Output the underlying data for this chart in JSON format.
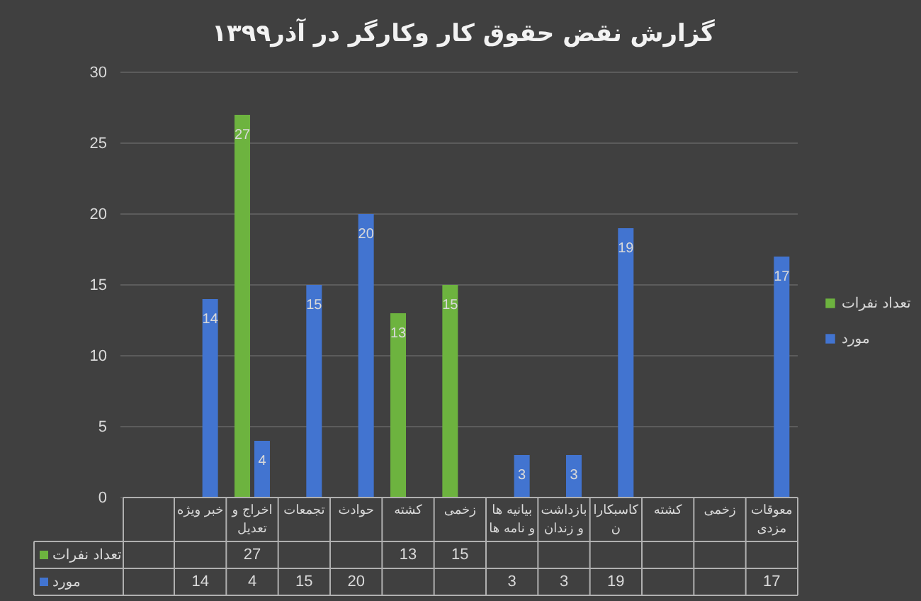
{
  "chart_data": {
    "type": "bar",
    "title": "گزارش نقض حقوق کار وکارگر در آذر۱۳۹۹",
    "categories": [
      "خبر ویژه",
      "اخراج و تعدیل",
      "تجمعات",
      "حوادث",
      "کشته",
      "زخمی",
      "بیانیه ها و نامه ها",
      "بازداشت و زندان",
      "کاسبکاران",
      "کشته",
      "زخمی",
      "معوقات مزدی"
    ],
    "series": [
      {
        "name": "تعداد نفرات",
        "color": "#6db33f",
        "values": [
          null,
          27,
          null,
          null,
          13,
          15,
          null,
          null,
          null,
          null,
          null,
          null
        ],
        "value_labels": [
          null,
          "27",
          null,
          null,
          "13",
          "15",
          null,
          null,
          null,
          null,
          null,
          null
        ]
      },
      {
        "name": "مورد",
        "color": "#4274d0",
        "values": [
          14,
          4,
          15,
          20,
          null,
          null,
          3,
          3,
          19,
          null,
          null,
          17
        ],
        "value_labels": [
          "14",
          "4",
          "15",
          "20",
          null,
          null,
          "3",
          "3",
          "19",
          null,
          null,
          "17"
        ]
      }
    ],
    "ylim": [
      0,
      30
    ],
    "yticks": [
      0,
      5,
      10,
      15,
      20,
      25,
      30
    ],
    "grid": "y",
    "legend": "right",
    "data_labels": true
  }
}
